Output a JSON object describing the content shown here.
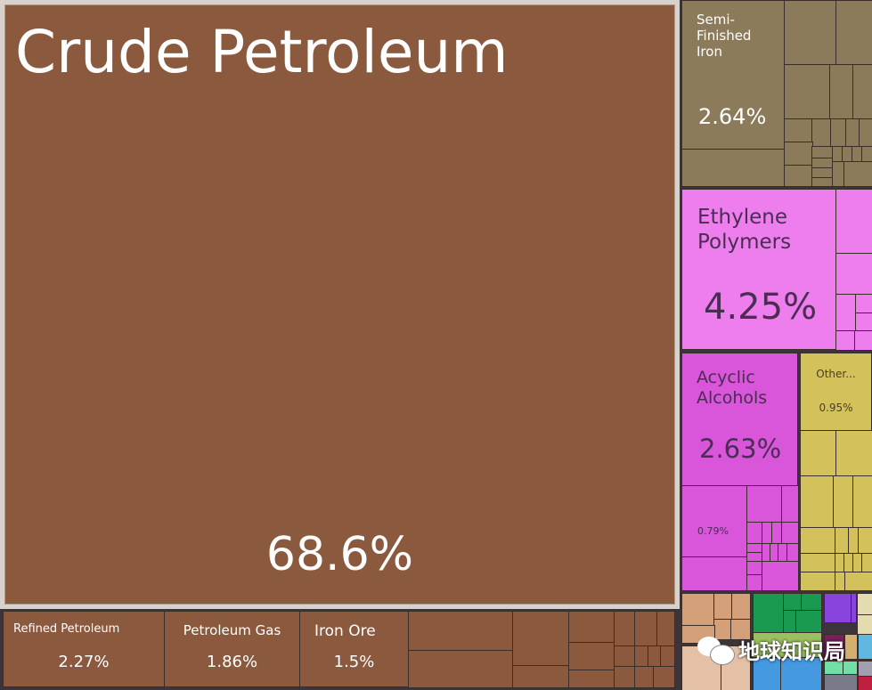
{
  "chart_data": {
    "type": "treemap",
    "value_unit": "%",
    "items": [
      {
        "label": "Crude Petroleum",
        "value": 68.6,
        "color": "#8b5a3e"
      },
      {
        "label": "Refined Petroleum",
        "value": 2.27,
        "color": "#8b5a3e"
      },
      {
        "label": "Petroleum Gas",
        "value": 1.86,
        "color": "#8b5a3e"
      },
      {
        "label": "Iron Ore",
        "value": 1.5,
        "color": "#8b5a3e"
      },
      {
        "label": "Semi-Finished Iron",
        "value": 2.64,
        "color": "#8c7b5b"
      },
      {
        "label": "Ethylene Polymers",
        "value": 4.25,
        "color": "#ee7eee"
      },
      {
        "label": "Acyclic Alcohols",
        "value": 2.63,
        "color": "#d955d9"
      },
      {
        "label": "",
        "value": 0.79,
        "color": "#d955d9"
      },
      {
        "label": "Other...",
        "value": 0.95,
        "color": "#d3c15c"
      }
    ],
    "labels": {
      "crude": "Crude Petroleum",
      "crude_pct": "68.6%",
      "refined": "Refined Petroleum",
      "refined_pct": "2.27%",
      "gas": "Petroleum Gas",
      "gas_pct": "1.86%",
      "ironore": "Iron Ore",
      "ironore_pct": "1.5%",
      "semi": "Semi-Finished Iron",
      "semi_pct": "2.64%",
      "ethylene": "Ethylene Polymers",
      "ethylene_pct": "4.25%",
      "acyclic": "Acyclic Alcohols",
      "acyclic_pct": "2.63%",
      "sub_pct": "0.79%",
      "other": "Other...",
      "other_pct": "0.95%"
    }
  },
  "watermark": "地球知识局"
}
